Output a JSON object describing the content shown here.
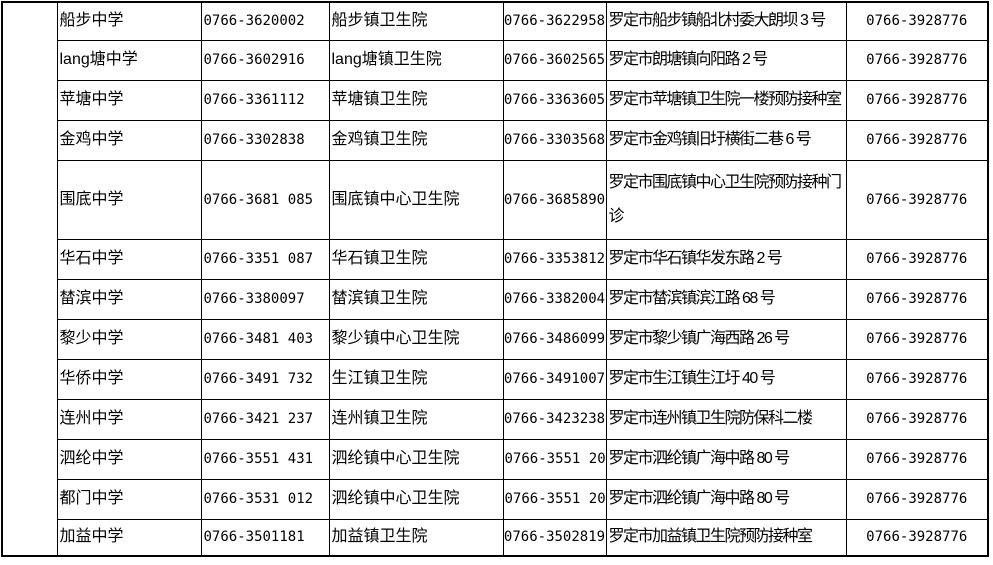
{
  "table": {
    "description": "school-clinic-vaccination-contact-table",
    "hotline_color": "#000000",
    "columns": [
      "school",
      "school_phone",
      "clinic",
      "clinic_phone",
      "clinic_address",
      "hotline_phone"
    ],
    "rows": [
      {
        "school": "船步中学",
        "phone1": "0766-3620002",
        "clinic": "船步镇卫生院",
        "phone2": "0766-3622958",
        "address": "罗定市船步镇船北村委大朗坝 3 号",
        "phone3": "0766-3928776"
      },
      {
        "school": "lang塘中学",
        "phone1": "0766-3602916",
        "clinic": "lang塘镇卫生院",
        "phone2": "0766-3602565",
        "address": "罗定市朗塘镇向阳路 2 号",
        "phone3": "0766-3928776"
      },
      {
        "school": "苹塘中学",
        "phone1": "0766-3361112",
        "clinic": "苹塘镇卫生院",
        "phone2": "0766-3363605",
        "address": "罗定市苹塘镇卫生院一楼预防接种室",
        "phone3": "0766-3928776"
      },
      {
        "school": "金鸡中学",
        "phone1": "0766-3302838",
        "clinic": "金鸡镇卫生院",
        "phone2": "0766-3303568",
        "address": "罗定市金鸡镇旧圩横街二巷 6 号",
        "phone3": "0766-3928776"
      },
      {
        "school": "围底中学",
        "phone1": "0766-3681 085",
        "clinic": "围底镇中心卫生院",
        "phone2": "0766-3685890",
        "address": "罗定市围底镇中心卫生院预防接种门诊",
        "phone3": "0766-3928776"
      },
      {
        "school": "华石中学",
        "phone1": "0766-3351 087",
        "clinic": "华石镇卫生院",
        "phone2": "0766-3353812",
        "address": "罗定市华石镇华发东路 2 号",
        "phone3": "0766-3928776"
      },
      {
        "school": "榃滨中学",
        "phone1": "0766-3380097",
        "clinic": "榃滨镇卫生院",
        "phone2": "0766-3382004",
        "address": "罗定市榃滨镇滨江路 68 号",
        "phone3": "0766-3928776"
      },
      {
        "school": "黎少中学",
        "phone1": "0766-3481 403",
        "clinic": "黎少镇中心卫生院",
        "phone2": "0766-3486099",
        "address": "罗定市黎少镇广海西路 26 号",
        "phone3": "0766-3928776"
      },
      {
        "school": "华侨中学",
        "phone1": "0766-3491 732",
        "clinic": "生江镇卫生院",
        "phone2": "0766-3491007",
        "address": "罗定市生江镇生江圩 40 号",
        "phone3": "0766-3928776"
      },
      {
        "school": "连州中学",
        "phone1": "0766-3421 237",
        "clinic": "连州镇卫生院",
        "phone2": "0766-3423238",
        "address": "罗定市连州镇卫生院防保科二楼",
        "phone3": "0766-3928776"
      },
      {
        "school": "泗纶中学",
        "phone1": "0766-3551 431",
        "clinic": "泗纶镇中心卫生院",
        "phone2": "0766-3551 203",
        "phone2_align": "left",
        "address": "罗定市泗纶镇广海中路 80 号",
        "phone3": "0766-3928776"
      },
      {
        "school": "都门中学",
        "phone1": "0766-3531 012",
        "clinic": "泗纶镇中心卫生院",
        "phone2": "0766-3551 203",
        "phone2_align": "left",
        "address": "罗定市泗纶镇广海中路 80 号",
        "phone3": "0766-3928776"
      },
      {
        "school": "加益中学",
        "phone1": "0766-3501181",
        "clinic": "加益镇卫生院",
        "phone2": "0766-3502819",
        "address": "罗定市加益镇卫生院预防接种室",
        "phone3": "0766-3928776"
      }
    ]
  }
}
